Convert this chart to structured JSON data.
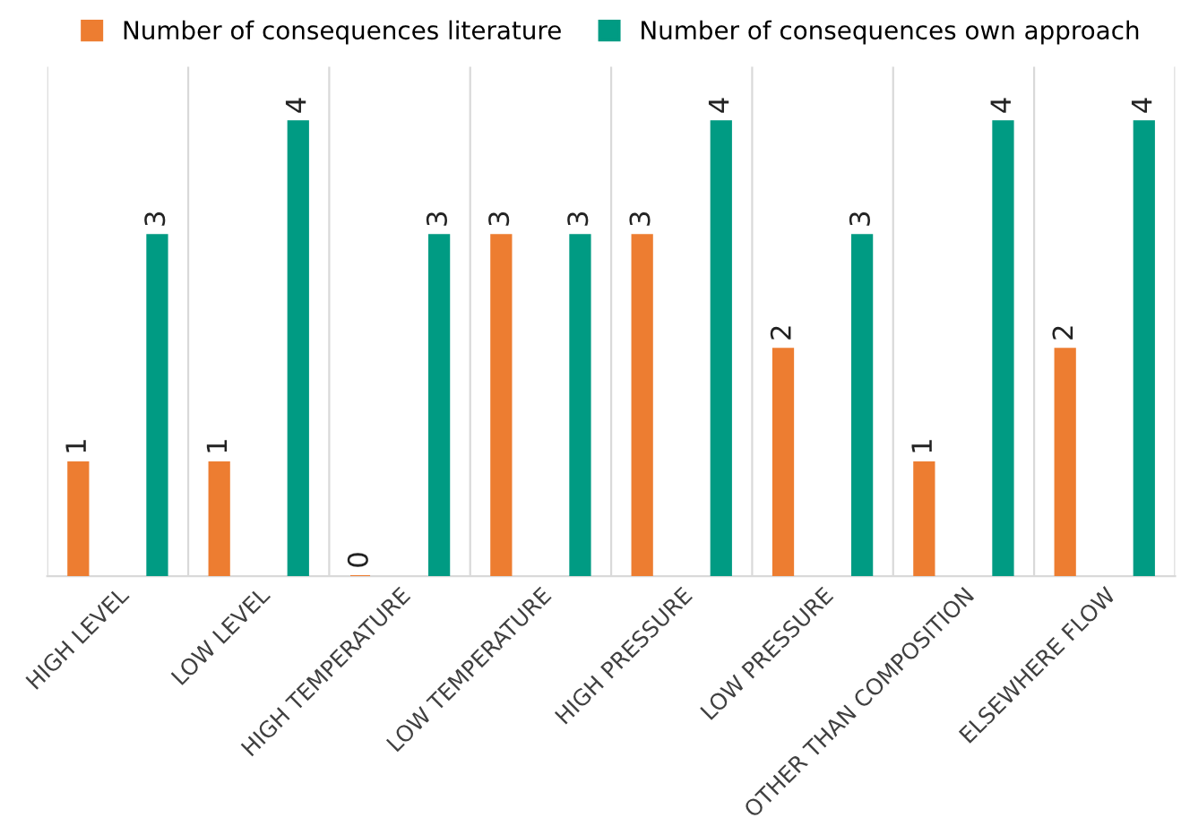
{
  "chart_data": {
    "type": "bar",
    "categories": [
      "HIGH LEVEL",
      "LOW LEVEL",
      "HIGH TEMPERATURE",
      "LOW TEMPERATURE",
      "HIGH PRESSURE",
      "LOW PRESSURE",
      "OTHER THAN COMPOSITION",
      "ELSEWHERE FLOW"
    ],
    "series": [
      {
        "name": "Number of consequences literature",
        "color": "#ed7d31",
        "values": [
          1,
          1,
          0,
          3,
          3,
          2,
          1,
          2
        ]
      },
      {
        "name": "Number of consequences own approach",
        "color": "#009b83",
        "values": [
          3,
          4,
          3,
          3,
          4,
          3,
          4,
          4
        ]
      }
    ],
    "data_labels": true,
    "grid": "x",
    "legend": "top"
  }
}
